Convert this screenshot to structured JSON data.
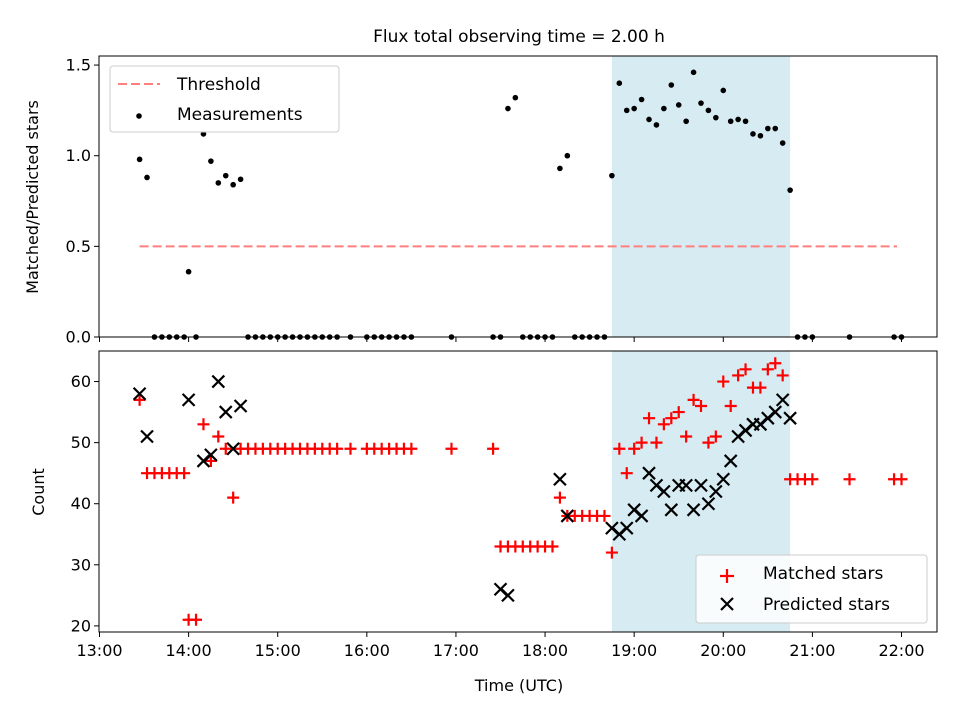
{
  "title": "Flux total observing time = 2.00 h",
  "colors": {
    "threshold": "#ff7f7f",
    "measurement": "#000000",
    "matched": "#ff0000",
    "predicted": "#000000",
    "shade": "#add8e6"
  },
  "chart_data": [
    {
      "type": "scatter",
      "ylabel": "Matched/Predicted stars",
      "xlabel": "",
      "ylim": [
        0,
        1.55
      ],
      "yticks": [
        0,
        0.5,
        1.0,
        1.5
      ],
      "ytick_labels": [
        "0.0",
        "0.5",
        "1.0",
        "1.5"
      ],
      "grid": false,
      "legend_position": "top-left",
      "threshold": {
        "name": "Threshold",
        "y": 0.5,
        "x_start": "13:27",
        "x_end": "21:57"
      },
      "highlight_region": {
        "x_start": "18:45",
        "x_end": "20:45"
      },
      "series": [
        {
          "name": "Measurements",
          "x": [
            "13:27",
            "13:32",
            "13:37",
            "13:42",
            "13:47",
            "13:52",
            "13:57",
            "14:00",
            "14:05",
            "14:10",
            "14:15",
            "14:20",
            "14:25",
            "14:30",
            "14:35",
            "14:40",
            "14:45",
            "14:50",
            "14:55",
            "15:00",
            "15:05",
            "15:10",
            "15:15",
            "15:20",
            "15:25",
            "15:30",
            "15:35",
            "15:40",
            "15:49",
            "16:00",
            "16:05",
            "16:10",
            "16:15",
            "16:20",
            "16:25",
            "16:30",
            "16:57",
            "17:25",
            "17:30",
            "17:35",
            "17:40",
            "17:45",
            "17:50",
            "17:55",
            "18:00",
            "18:05",
            "18:10",
            "18:15",
            "18:20",
            "18:25",
            "18:30",
            "18:35",
            "18:40",
            "18:45",
            "18:50",
            "18:55",
            "19:00",
            "19:05",
            "19:10",
            "19:15",
            "19:20",
            "19:25",
            "19:30",
            "19:35",
            "19:40",
            "19:45",
            "19:50",
            "19:55",
            "20:00",
            "20:05",
            "20:10",
            "20:15",
            "20:20",
            "20:25",
            "20:30",
            "20:35",
            "20:40",
            "20:45",
            "20:50",
            "20:55",
            "21:00",
            "21:25",
            "21:55",
            "22:00"
          ],
          "y": [
            0.98,
            0.88,
            0,
            0,
            0,
            0,
            0,
            0.36,
            0,
            1.12,
            0.97,
            0.85,
            0.89,
            0.84,
            0.87,
            0,
            0,
            0,
            0,
            0,
            0,
            0,
            0,
            0,
            0,
            0,
            0,
            0,
            0,
            0,
            0,
            0,
            0,
            0,
            0,
            0,
            0,
            0,
            0,
            1.26,
            1.32,
            0,
            0,
            0,
            0,
            0,
            0.93,
            1.0,
            0,
            0,
            0,
            0,
            0,
            0.89,
            1.4,
            1.25,
            1.26,
            1.31,
            1.2,
            1.17,
            1.26,
            1.39,
            1.28,
            1.19,
            1.46,
            1.29,
            1.25,
            1.21,
            1.36,
            1.19,
            1.2,
            1.19,
            1.12,
            1.11,
            1.15,
            1.15,
            1.07,
            0.81,
            0,
            0,
            0,
            0,
            0,
            0
          ]
        }
      ]
    },
    {
      "type": "scatter",
      "ylabel": "Count",
      "xlabel": "Time (UTC)",
      "ylim": [
        19,
        65
      ],
      "yticks": [
        20,
        30,
        40,
        50,
        60
      ],
      "ytick_labels": [
        "20",
        "30",
        "40",
        "50",
        "60"
      ],
      "xticks": [
        "13:00",
        "14:00",
        "15:00",
        "16:00",
        "17:00",
        "18:00",
        "19:00",
        "20:00",
        "21:00",
        "22:00"
      ],
      "grid": false,
      "legend_position": "bottom-right",
      "highlight_region": {
        "x_start": "18:45",
        "x_end": "20:45"
      },
      "series": [
        {
          "name": "Matched stars",
          "marker": "plus",
          "x": [
            "13:27",
            "13:32",
            "13:37",
            "13:42",
            "13:47",
            "13:52",
            "13:57",
            "14:00",
            "14:05",
            "14:10",
            "14:15",
            "14:20",
            "14:25",
            "14:30",
            "14:35",
            "14:40",
            "14:45",
            "14:50",
            "14:55",
            "15:00",
            "15:05",
            "15:10",
            "15:15",
            "15:20",
            "15:25",
            "15:30",
            "15:35",
            "15:40",
            "15:49",
            "16:00",
            "16:05",
            "16:10",
            "16:15",
            "16:20",
            "16:25",
            "16:30",
            "16:57",
            "17:25",
            "17:30",
            "17:35",
            "17:40",
            "17:45",
            "17:50",
            "17:55",
            "18:00",
            "18:05",
            "18:10",
            "18:15",
            "18:20",
            "18:25",
            "18:30",
            "18:35",
            "18:40",
            "18:45",
            "18:50",
            "18:55",
            "19:00",
            "19:05",
            "19:10",
            "19:15",
            "19:20",
            "19:25",
            "19:30",
            "19:35",
            "19:40",
            "19:45",
            "19:50",
            "19:55",
            "20:00",
            "20:05",
            "20:10",
            "20:15",
            "20:20",
            "20:25",
            "20:30",
            "20:35",
            "20:40",
            "20:45",
            "20:50",
            "20:55",
            "21:00",
            "21:25",
            "21:55",
            "22:00"
          ],
          "y": [
            57,
            45,
            45,
            45,
            45,
            45,
            45,
            21,
            21,
            53,
            47,
            51,
            49,
            41,
            49,
            49,
            49,
            49,
            49,
            49,
            49,
            49,
            49,
            49,
            49,
            49,
            49,
            49,
            49,
            49,
            49,
            49,
            49,
            49,
            49,
            49,
            49,
            49,
            33,
            33,
            33,
            33,
            33,
            33,
            33,
            33,
            41,
            38,
            38,
            38,
            38,
            38,
            38,
            32,
            49,
            45,
            49,
            50,
            54,
            50,
            53,
            54,
            55,
            51,
            57,
            56,
            50,
            51,
            60,
            56,
            61,
            62,
            59,
            59,
            62,
            63,
            61,
            44,
            44,
            44,
            44,
            44,
            44,
            44
          ]
        },
        {
          "name": "Predicted stars",
          "marker": "x",
          "x": [
            "13:27",
            "13:32",
            "14:00",
            "14:10",
            "14:15",
            "14:20",
            "14:25",
            "14:30",
            "14:35",
            "17:30",
            "17:35",
            "18:10",
            "18:15",
            "18:45",
            "18:50",
            "18:55",
            "19:00",
            "19:05",
            "19:10",
            "19:15",
            "19:20",
            "19:25",
            "19:30",
            "19:35",
            "19:40",
            "19:45",
            "19:50",
            "19:55",
            "20:00",
            "20:05",
            "20:10",
            "20:15",
            "20:20",
            "20:25",
            "20:30",
            "20:35",
            "20:40",
            "20:45"
          ],
          "y": [
            58,
            51,
            57,
            47,
            48,
            60,
            55,
            49,
            56,
            26,
            25,
            44,
            38,
            36,
            35,
            36,
            39,
            38,
            45,
            43,
            42,
            39,
            43,
            43,
            39,
            43,
            40,
            42,
            44,
            47,
            51,
            52,
            53,
            53,
            54,
            55,
            57,
            54
          ]
        }
      ]
    }
  ]
}
